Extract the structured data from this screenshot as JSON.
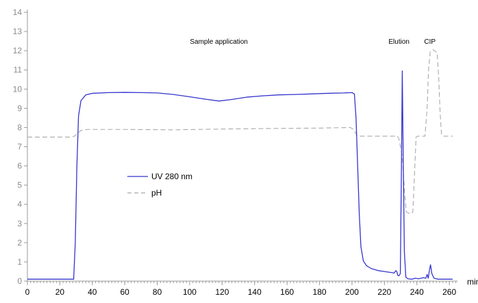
{
  "chart_data": {
    "type": "line",
    "xlim": [
      0,
      265
    ],
    "ylim": [
      0,
      14
    ],
    "x_ticks": [
      0,
      20,
      40,
      60,
      80,
      100,
      120,
      140,
      160,
      180,
      200,
      220,
      240,
      260
    ],
    "y_ticks": [
      0,
      1,
      2,
      3,
      4,
      5,
      6,
      7,
      8,
      9,
      10,
      11,
      12,
      13,
      14
    ],
    "x_minor_step": 2,
    "x_unit": "min",
    "grid": false,
    "legend_position": "center-left",
    "annotations": [
      {
        "text": "Sample application",
        "x": 118,
        "y": 12.5
      },
      {
        "text": "Elution",
        "x": 229,
        "y": 12.5
      },
      {
        "text": "CIP",
        "x": 248,
        "y": 12.5
      }
    ],
    "series": [
      {
        "name": "UV 280 nm",
        "color": "#3333cc",
        "style": "solid",
        "points": [
          [
            0,
            0.1
          ],
          [
            28.5,
            0.1
          ],
          [
            29.5,
            2.0
          ],
          [
            30.5,
            6.0
          ],
          [
            31.5,
            8.6
          ],
          [
            33,
            9.4
          ],
          [
            36,
            9.7
          ],
          [
            40,
            9.78
          ],
          [
            50,
            9.82
          ],
          [
            60,
            9.83
          ],
          [
            70,
            9.82
          ],
          [
            80,
            9.8
          ],
          [
            90,
            9.72
          ],
          [
            100,
            9.6
          ],
          [
            110,
            9.47
          ],
          [
            118,
            9.38
          ],
          [
            125,
            9.45
          ],
          [
            135,
            9.58
          ],
          [
            145,
            9.65
          ],
          [
            155,
            9.7
          ],
          [
            165,
            9.72
          ],
          [
            175,
            9.75
          ],
          [
            185,
            9.78
          ],
          [
            195,
            9.8
          ],
          [
            200,
            9.82
          ],
          [
            201.5,
            9.75
          ],
          [
            202.5,
            8.5
          ],
          [
            203.5,
            6.0
          ],
          [
            204.5,
            3.5
          ],
          [
            205.5,
            1.8
          ],
          [
            207,
            1.05
          ],
          [
            209,
            0.8
          ],
          [
            212,
            0.65
          ],
          [
            216,
            0.55
          ],
          [
            220,
            0.5
          ],
          [
            224,
            0.45
          ],
          [
            226,
            0.42
          ],
          [
            227,
            0.55
          ],
          [
            227.6,
            0.5
          ],
          [
            228.2,
            0.3
          ],
          [
            229,
            0.28
          ],
          [
            229.8,
            0.4
          ],
          [
            230.5,
            6.0
          ],
          [
            231.0,
            10.95
          ],
          [
            231.5,
            7.0
          ],
          [
            232.3,
            1.5
          ],
          [
            233.2,
            0.2
          ],
          [
            234.5,
            0.12
          ],
          [
            237,
            0.1
          ],
          [
            239,
            0.15
          ],
          [
            241,
            0.12
          ],
          [
            244,
            0.18
          ],
          [
            245.5,
            0.15
          ],
          [
            246.3,
            0.35
          ],
          [
            247,
            0.15
          ],
          [
            247.7,
            0.55
          ],
          [
            248.4,
            0.85
          ],
          [
            249.2,
            0.4
          ],
          [
            250.5,
            0.15
          ],
          [
            253,
            0.1
          ],
          [
            262,
            0.1
          ]
        ]
      },
      {
        "name": "pH",
        "color": "#a8a8a8",
        "style": "dashed",
        "points": [
          [
            0,
            7.5
          ],
          [
            27,
            7.5
          ],
          [
            29,
            7.55
          ],
          [
            31,
            7.7
          ],
          [
            33,
            7.85
          ],
          [
            37,
            7.9
          ],
          [
            60,
            7.9
          ],
          [
            90,
            7.88
          ],
          [
            120,
            7.92
          ],
          [
            150,
            7.95
          ],
          [
            180,
            7.97
          ],
          [
            199,
            8.0
          ],
          [
            201,
            7.9
          ],
          [
            203,
            7.6
          ],
          [
            205,
            7.55
          ],
          [
            228,
            7.55
          ],
          [
            229,
            7.4
          ],
          [
            231,
            6.5
          ],
          [
            232.5,
            4.5
          ],
          [
            233.5,
            3.6
          ],
          [
            236,
            3.5
          ],
          [
            237.5,
            3.6
          ],
          [
            238.5,
            5.5
          ],
          [
            239.5,
            7.5
          ],
          [
            240.5,
            7.55
          ],
          [
            245,
            7.55
          ],
          [
            246.3,
            9.0
          ],
          [
            247.2,
            11.0
          ],
          [
            248.2,
            11.95
          ],
          [
            250,
            12.05
          ],
          [
            252.5,
            11.9
          ],
          [
            253.5,
            10.5
          ],
          [
            254.3,
            8.8
          ],
          [
            255.2,
            7.6
          ],
          [
            256.5,
            7.55
          ],
          [
            262,
            7.55
          ]
        ]
      }
    ]
  }
}
